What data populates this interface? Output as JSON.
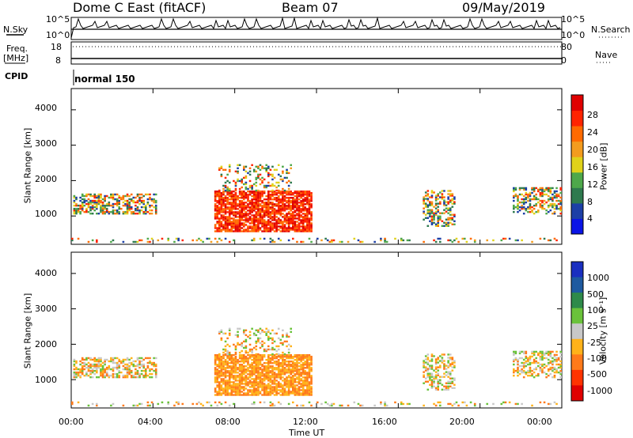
{
  "header": {
    "station": "Dome C East (fitACF)",
    "beam": "Beam 07",
    "date": "09/May/2019"
  },
  "noise_panel": {
    "left_label": "N.Sky",
    "right_label": "N.Search",
    "left_ticks": [
      "10^5",
      "10^0"
    ],
    "right_ticks": [
      "10^5",
      "10^0"
    ]
  },
  "freq_panel": {
    "left_label": "Freq.",
    "left_unit": "[MHz]",
    "right_label": "Nave",
    "left_ticks": [
      "18",
      "8"
    ],
    "right_ticks": [
      "80",
      "0"
    ]
  },
  "cpid": {
    "label": "CPID",
    "value": "normal 150"
  },
  "colors": {
    "power": [
      "#0a14e6",
      "#1c3fa6",
      "#2e7a4e",
      "#4ea84a",
      "#e0d21a",
      "#f39c1e",
      "#ff6a00",
      "#ff2400",
      "#e00000"
    ],
    "velocity": [
      "#e00000",
      "#ff3300",
      "#ff7a1a",
      "#ffb21a",
      "#c8c8c8",
      "#6ac23a",
      "#2e8a4a",
      "#1e5aa0",
      "#1a2fc0"
    ]
  },
  "chart_data": [
    {
      "type": "heatmap",
      "variable": "Power",
      "ylabel": "Slant Range [km]",
      "yticks": [
        "1000",
        "2000",
        "3000",
        "4000"
      ],
      "ylim": [
        200,
        4600
      ],
      "xlim": [
        "00:00",
        "24:00"
      ],
      "colorbar": {
        "label": "Power [dB]",
        "ticks": [
          "4",
          "8",
          "12",
          "16",
          "20",
          "24",
          "28"
        ],
        "range": [
          0,
          32
        ]
      }
    },
    {
      "type": "heatmap",
      "variable": "Velocity",
      "ylabel": "Slant Range [km]",
      "yticks": [
        "1000",
        "2000",
        "3000",
        "4000"
      ],
      "ylim": [
        200,
        4600
      ],
      "xlim": [
        "00:00",
        "24:00"
      ],
      "xticks": [
        "00:00",
        "04:00",
        "08:00",
        "12:00",
        "16:00",
        "20:00",
        "00:00"
      ],
      "xlabel": "Time UT",
      "colorbar": {
        "label": "Velocity [m s⁻¹]",
        "ticks": [
          "1000",
          "500",
          "100",
          "25",
          "-25",
          "-100",
          "-500",
          "-1000"
        ]
      }
    }
  ]
}
